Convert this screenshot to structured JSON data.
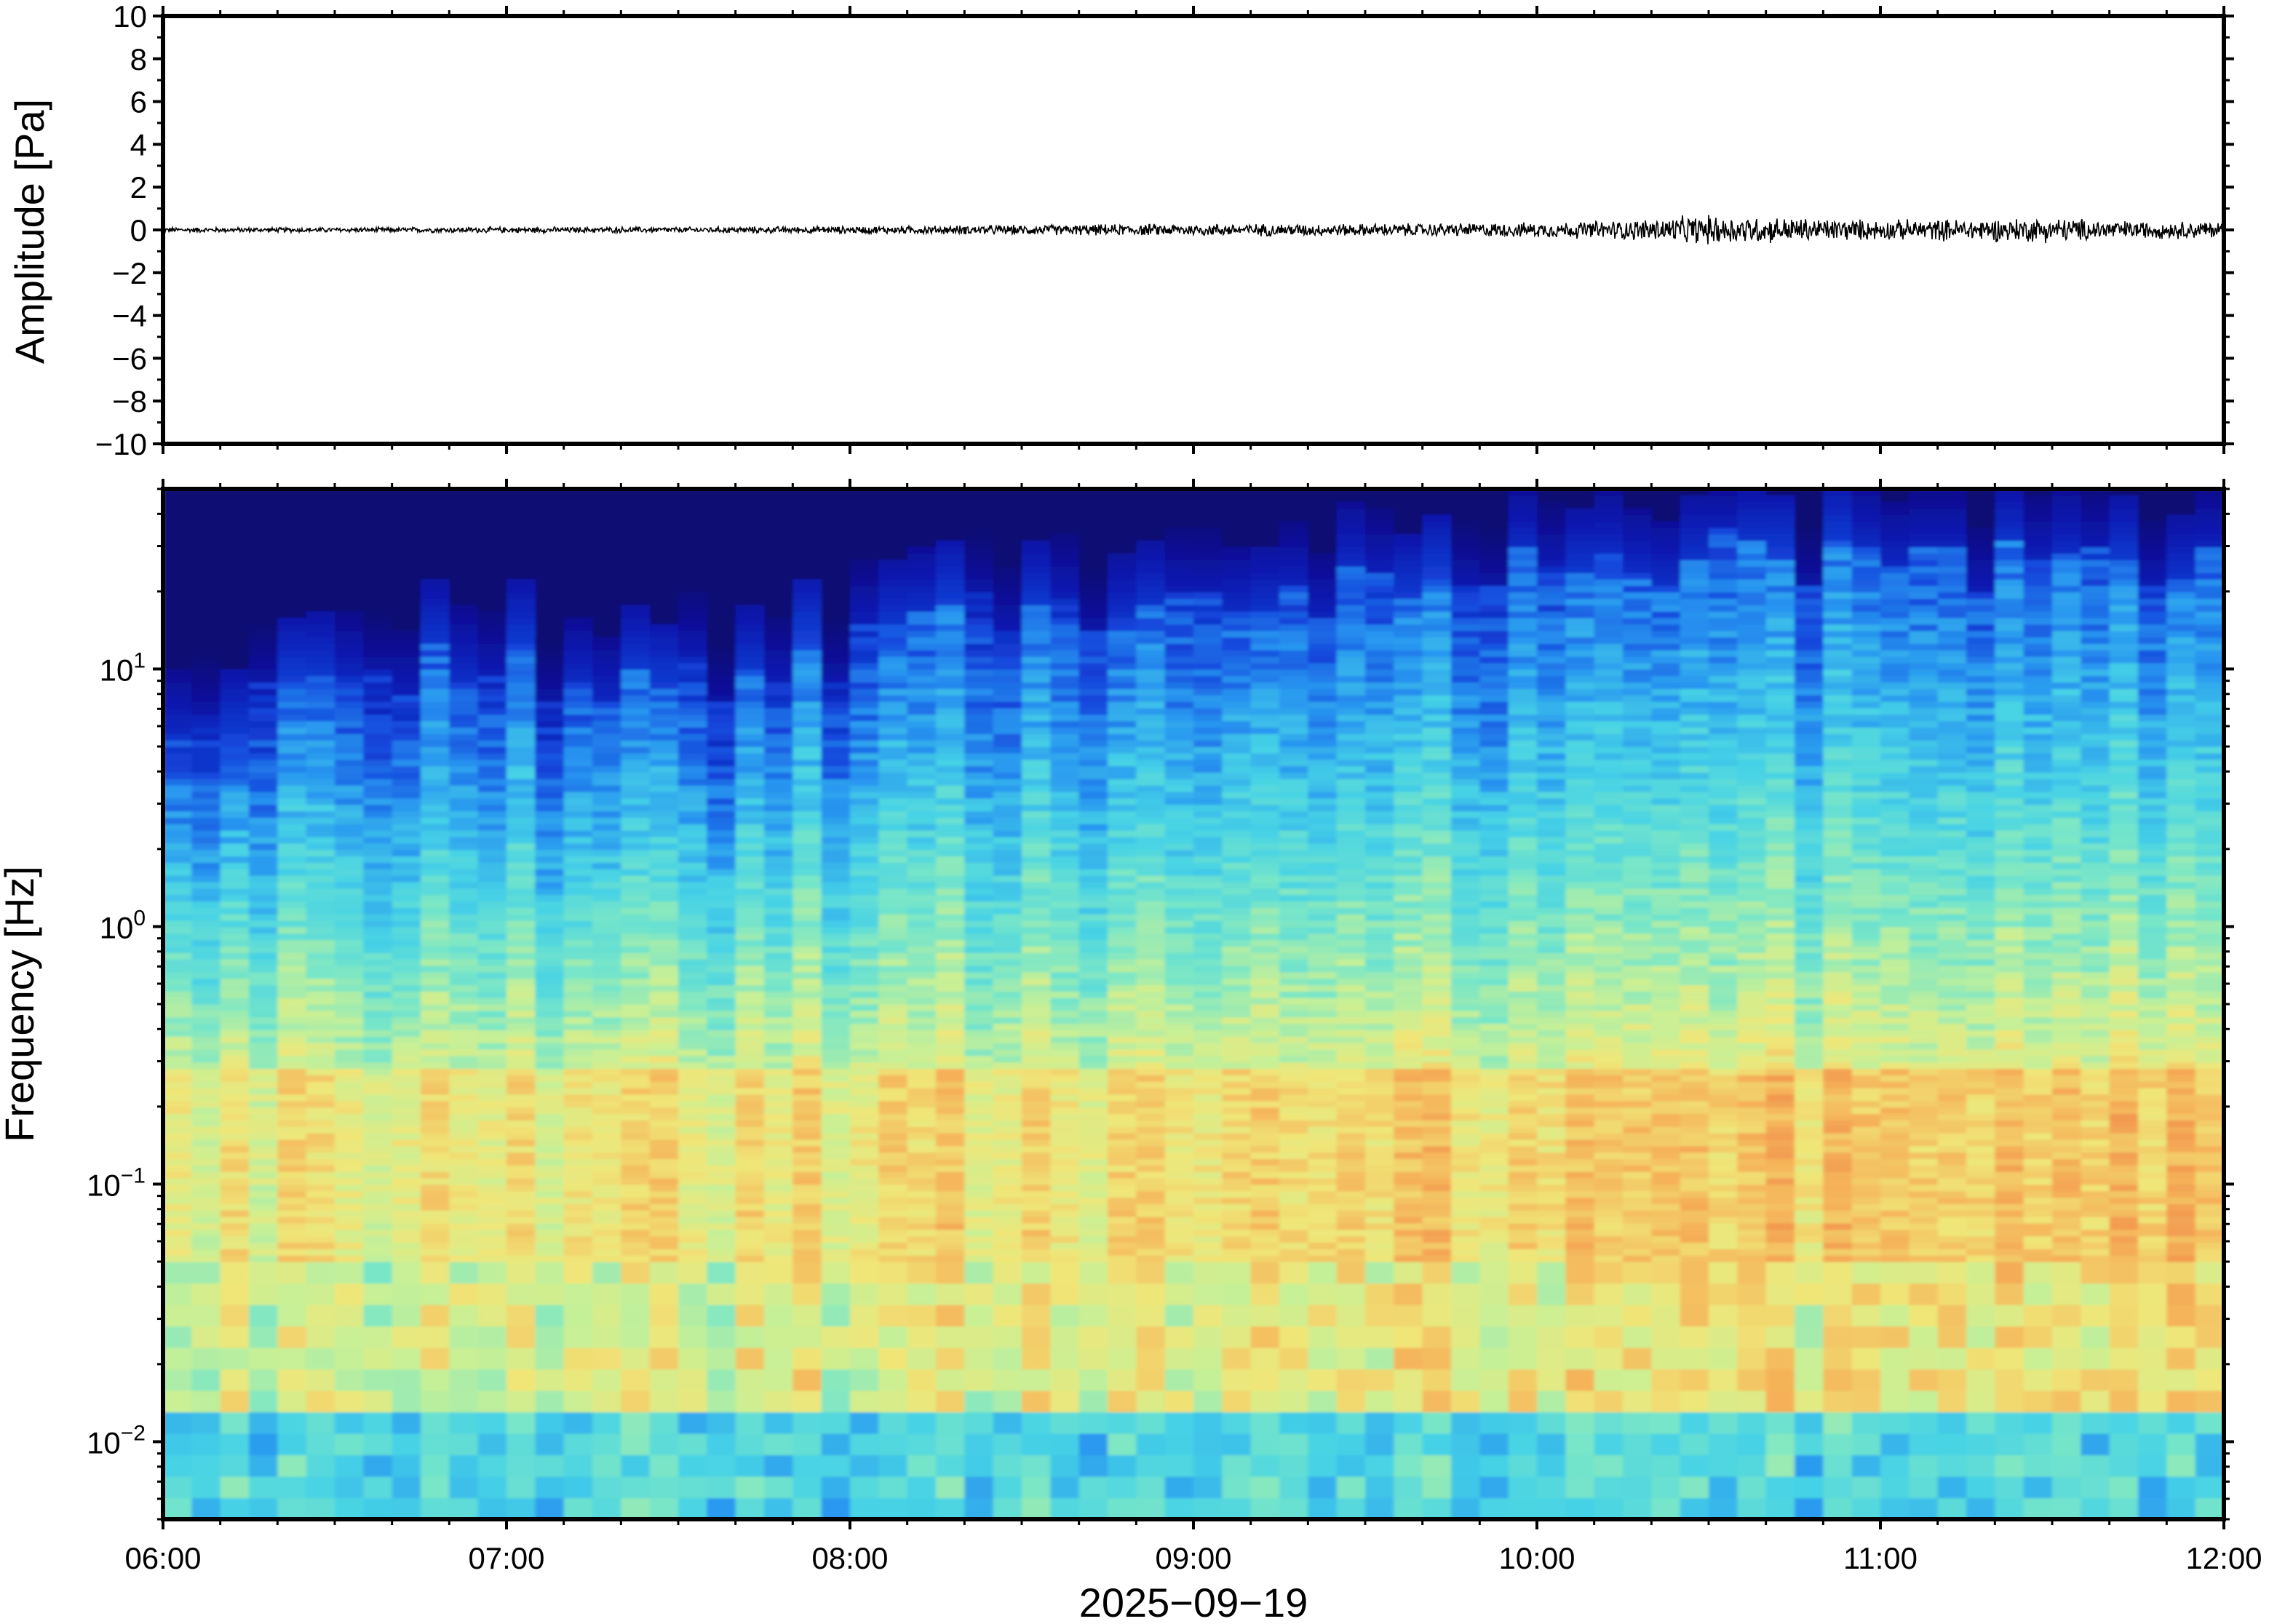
{
  "chart_data": [
    {
      "type": "line",
      "panel": "waveform",
      "ylabel": "Amplitude [Pa]",
      "ylim": [
        -10,
        10
      ],
      "yticks": [
        10,
        8,
        6,
        4,
        2,
        0,
        -2,
        -4,
        -6,
        -8,
        -10
      ],
      "ytick_labels": [
        "10",
        "8",
        "6",
        "4",
        "2",
        "0",
        "−2",
        "−4",
        "−6",
        "−8",
        "−10"
      ],
      "x_range": [
        "06:00",
        "12:00"
      ],
      "series": [
        {
          "color": "#000000",
          "envelope_time_hours": [
            6.0,
            6.5,
            7.0,
            7.5,
            8.0,
            8.5,
            9.0,
            9.5,
            10.0,
            10.25,
            10.5,
            10.75,
            11.0,
            11.25,
            11.5,
            11.75,
            12.0
          ],
          "envelope_amplitude_pa": [
            0.1,
            0.1,
            0.12,
            0.12,
            0.15,
            0.2,
            0.25,
            0.25,
            0.3,
            0.4,
            0.6,
            0.5,
            0.4,
            0.45,
            0.5,
            0.35,
            0.35
          ]
        }
      ]
    },
    {
      "type": "heatmap",
      "panel": "spectrogram",
      "ylabel": "Frequency [Hz]",
      "yscale": "log",
      "ylim": [
        0.005,
        50
      ],
      "yticks": [
        0.01,
        0.1,
        1,
        10
      ],
      "ytick_base": "10",
      "ytick_exponents": [
        "−2",
        "−1",
        "0",
        "1"
      ],
      "x_range": [
        "06:00",
        "12:00"
      ],
      "xticks": [
        "06:00",
        "07:00",
        "08:00",
        "09:00",
        "10:00",
        "11:00",
        "12:00"
      ],
      "xlabel": "2025−09−19",
      "colormap": "jet-like",
      "colors": {
        "low": "#0a0a73",
        "mid_low": "#1e6fe0",
        "mid": "#60e0d0",
        "mid_high": "#d8f08a",
        "high": "#f5a050"
      },
      "upper_cutoff_time_hours": [
        6.0,
        6.5,
        7.0,
        7.25,
        7.5,
        7.75,
        8.0,
        8.5,
        9.0,
        9.5,
        10.0,
        10.5,
        11.0,
        11.5,
        12.0
      ],
      "upper_cutoff_hz": [
        6,
        8,
        12,
        8,
        10,
        10,
        12,
        18,
        18,
        22,
        25,
        28,
        28,
        24,
        25
      ]
    }
  ]
}
